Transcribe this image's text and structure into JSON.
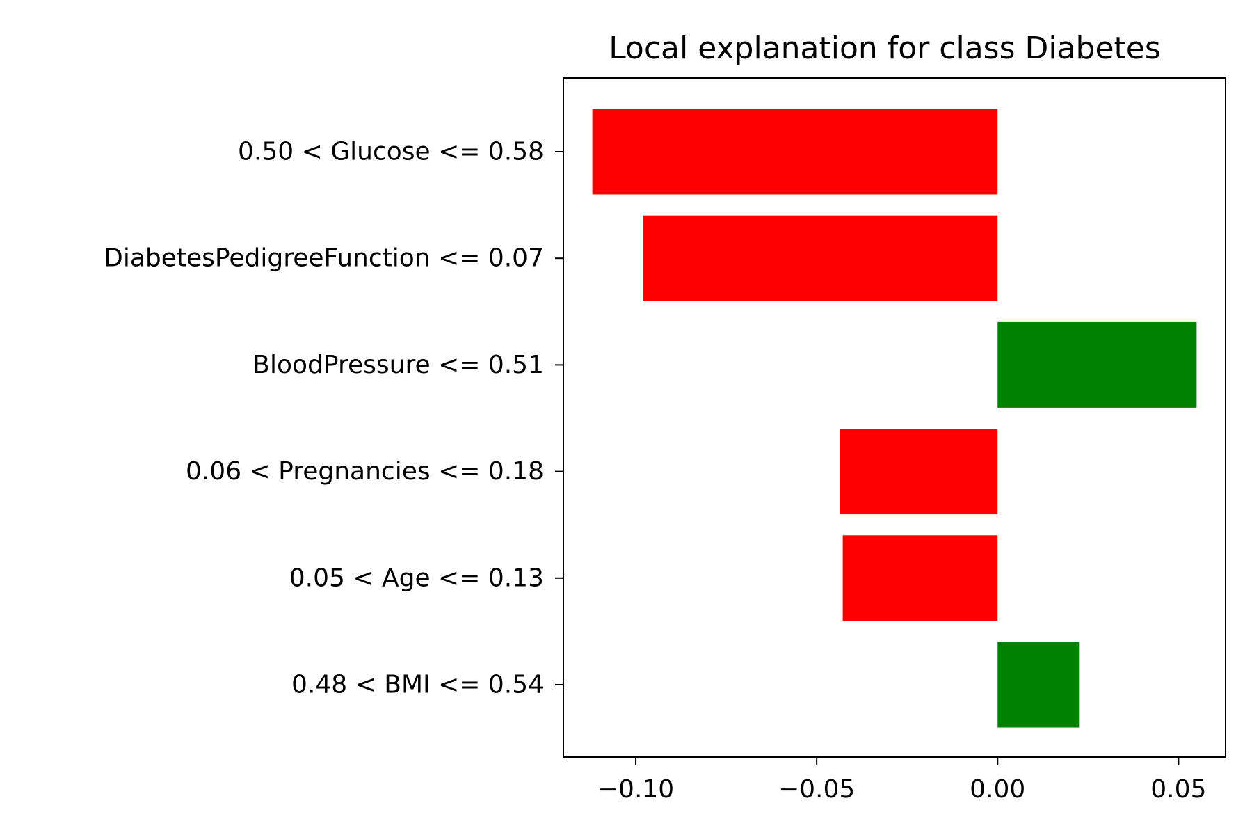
{
  "chart_data": {
    "type": "bar",
    "orientation": "horizontal",
    "title": "Local explanation for class Diabetes",
    "xlabel": "",
    "ylabel": "",
    "categories": [
      "0.50 < Glucose <= 0.58",
      "DiabetesPedigreeFunction <= 0.07",
      "BloodPressure <= 0.51",
      "0.06 < Pregnancies <= 0.18",
      "0.05 < Age <= 0.13",
      "0.48 < BMI <= 0.54"
    ],
    "values": [
      -0.112,
      -0.098,
      0.055,
      -0.0435,
      -0.0428,
      0.0225
    ],
    "xlim": [
      -0.12,
      0.063
    ],
    "xticks": [
      -0.1,
      -0.05,
      0.0,
      0.05
    ],
    "xtick_labels": [
      "−0.10",
      "−0.05",
      "0.00",
      "0.05"
    ],
    "colors": {
      "positive": "#008000",
      "negative": "#ff0000"
    },
    "grid": false,
    "legend": "none"
  }
}
